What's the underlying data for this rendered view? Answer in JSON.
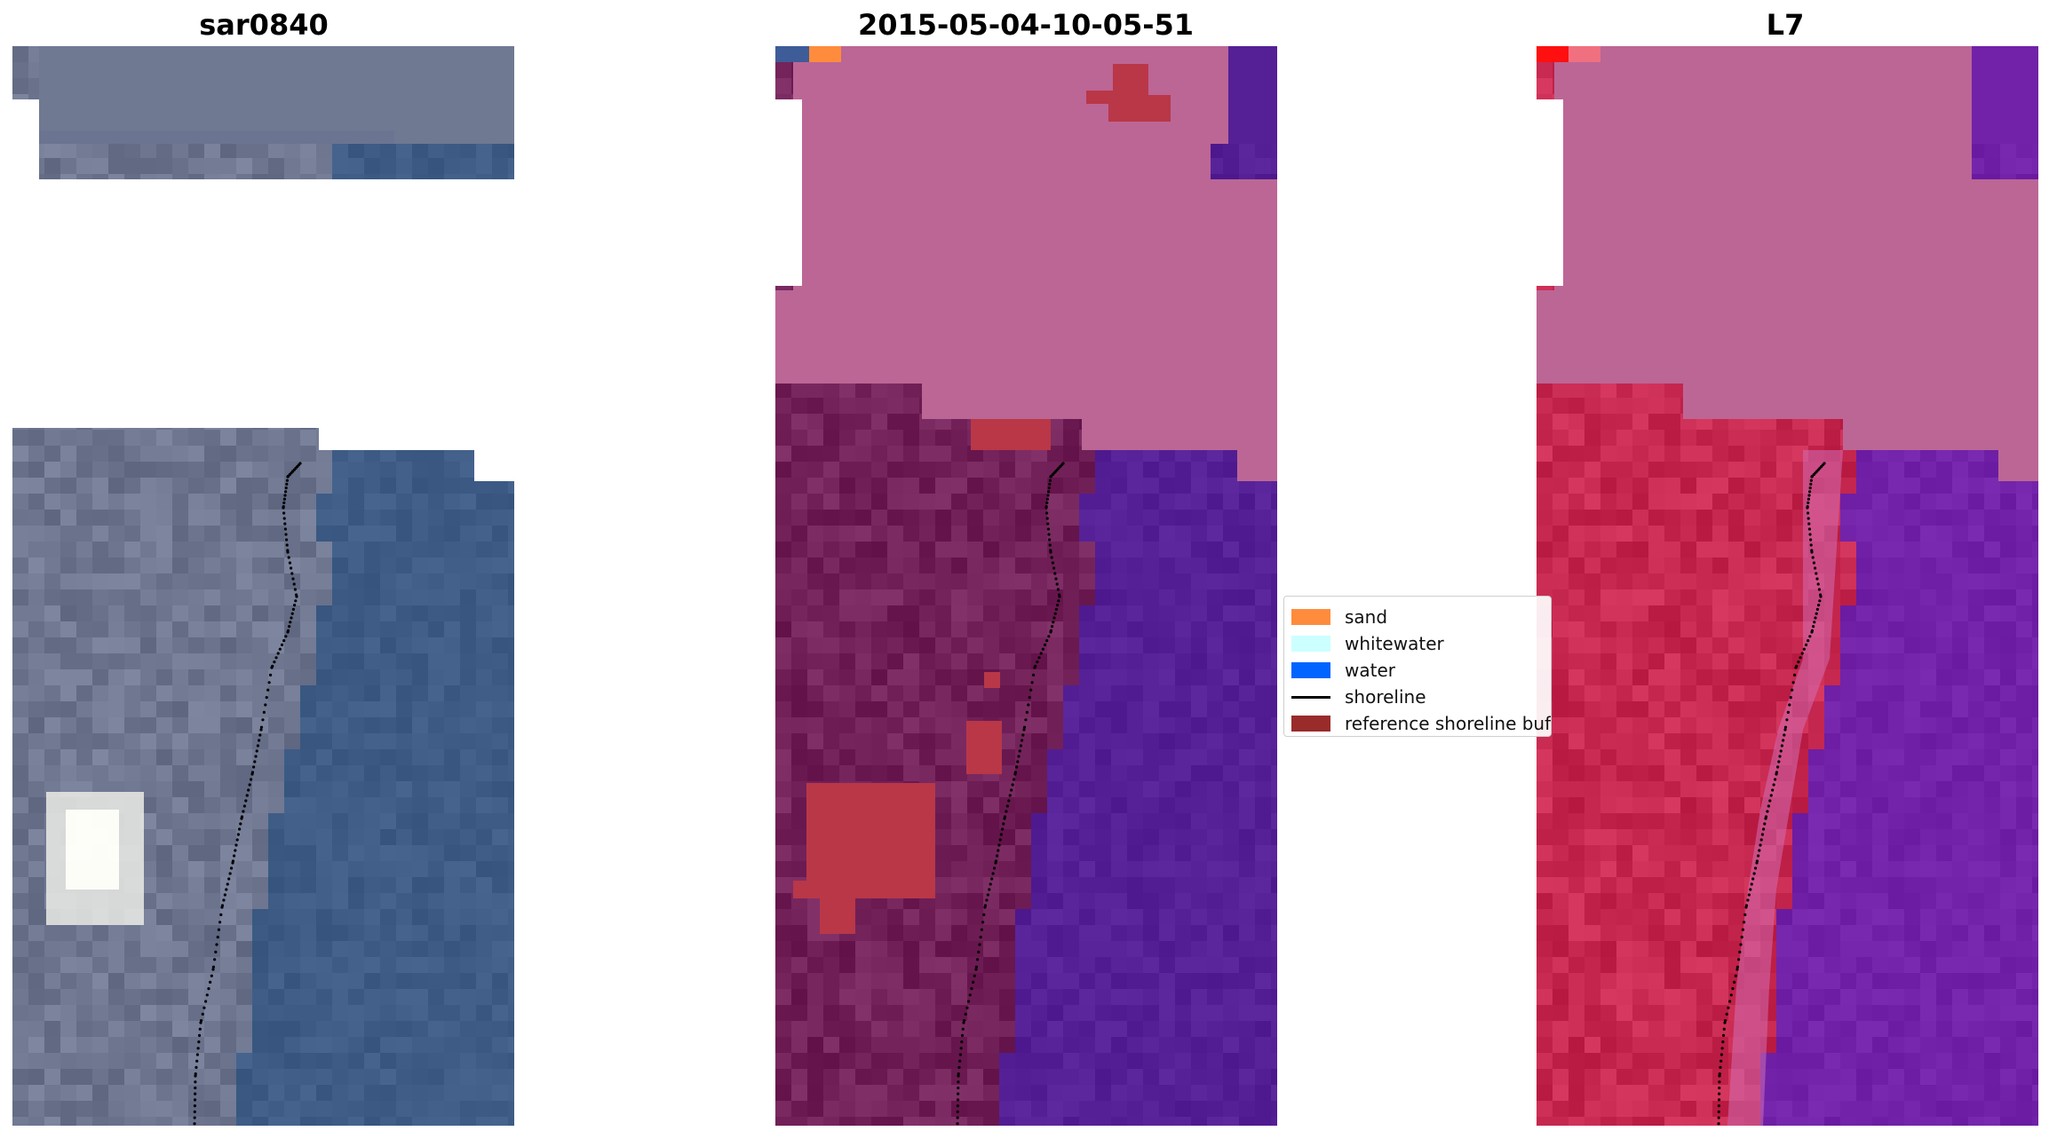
{
  "panels": [
    {
      "title": "sar0840",
      "kind": "rgb"
    },
    {
      "title": "2015-05-04-10-05-51",
      "kind": "classified"
    },
    {
      "title": "L7",
      "kind": "index"
    }
  ],
  "legend": {
    "items": [
      {
        "label": "sand",
        "color": "#ff8c3c",
        "type": "patch"
      },
      {
        "label": "whitewater",
        "color": "#ccffff",
        "type": "patch"
      },
      {
        "label": "water",
        "color": "#0064ff",
        "type": "patch"
      },
      {
        "label": "shoreline",
        "color": "#000000",
        "type": "line"
      },
      {
        "label": "reference shoreline buffer",
        "color": "#9a2b2b",
        "type": "patch"
      }
    ]
  },
  "colors": {
    "mask": "#ffffff",
    "land_rgb": "#6e7690",
    "sea_rgb": "#3e5c86",
    "cloud_rgb": "#f2f2ee",
    "land_class": "#722259",
    "sea_class": "#552096",
    "cloud_class": "#bc6696",
    "buffer_class": "#b93747",
    "land_index": "#c7284f",
    "sea_index": "#7122a8",
    "cloud_index": "#bc6696"
  }
}
